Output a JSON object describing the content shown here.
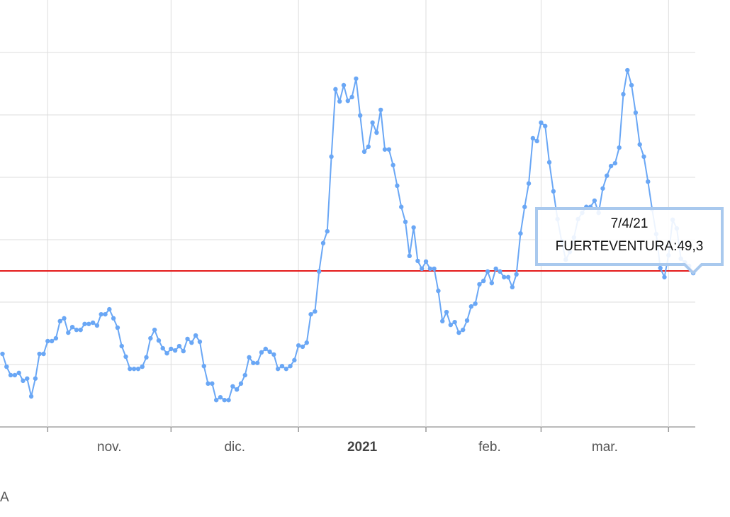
{
  "chart_data": {
    "type": "line",
    "series": [
      {
        "name": "FUERTEVENTURA",
        "color": "#6aa7f5",
        "values": [
          23.4,
          19.3,
          16.6,
          16.6,
          17.3,
          14.8,
          15.5,
          9.8,
          15.5,
          23.4,
          23.4,
          27.5,
          27.5,
          28.4,
          33.9,
          34.8,
          30.2,
          32.0,
          31.1,
          31.1,
          33.0,
          33.0,
          33.4,
          32.5,
          36.1,
          36.1,
          37.7,
          34.8,
          31.8,
          25.9,
          22.5,
          18.6,
          18.6,
          18.6,
          19.3,
          22.3,
          28.4,
          31.1,
          27.7,
          25.2,
          23.6,
          25.0,
          24.5,
          25.9,
          24.3,
          28.2,
          27.0,
          29.3,
          27.3,
          19.5,
          13.9,
          13.9,
          8.6,
          9.5,
          8.6,
          8.6,
          13.0,
          12.0,
          13.9,
          16.6,
          22.3,
          20.5,
          20.5,
          23.9,
          25.0,
          24.1,
          23.2,
          18.6,
          19.5,
          18.6,
          19.5,
          21.4,
          26.1,
          25.7,
          27.0,
          36.1,
          37.0,
          49.8,
          58.9,
          62.7,
          86.6,
          108.2,
          104.3,
          109.5,
          104.5,
          105.7,
          111.6,
          99.8,
          88.2,
          89.8,
          97.5,
          94.3,
          101.6,
          88.9,
          88.9,
          83.9,
          77.3,
          70.5,
          65.7,
          54.8,
          63.9,
          53.2,
          50.7,
          53.0,
          50.7,
          50.7,
          43.6,
          33.9,
          36.8,
          32.7,
          33.6,
          30.2,
          31.1,
          34.1,
          38.6,
          39.5,
          45.7,
          46.8,
          49.8,
          46.1,
          50.7,
          49.8,
          48.0,
          48.0,
          44.8,
          48.9,
          62.0,
          70.5,
          78.0,
          92.5,
          91.6,
          97.5,
          96.4,
          84.8,
          75.5,
          66.6,
          59.5,
          53.6,
          56.1,
          60.7,
          66.6,
          68.6,
          70.5,
          70.5,
          72.5,
          68.6,
          76.4,
          80.5,
          83.6,
          84.5,
          89.5,
          106.6,
          114.3,
          109.5,
          100.7,
          90.5,
          86.6,
          78.6,
          69.8,
          61.8,
          50.9,
          48.0,
          55.0,
          66.4,
          63.6,
          53.9,
          52.7,
          51.6,
          49.3
        ]
      }
    ],
    "xlim": [
      -0.6,
      168.5
    ],
    "xticks": [
      11,
      41,
      72,
      103,
      131,
      162
    ],
    "xlabels": [
      {
        "value": 26,
        "label": "nov."
      },
      {
        "value": 56.5,
        "label": "dic."
      },
      {
        "value": 87.5,
        "label": "2021"
      },
      {
        "value": 118.5,
        "label": "feb."
      },
      {
        "value": 146.5,
        "label": "mar."
      }
    ],
    "ylim": [
      0,
      136.8
    ],
    "yticks": [
      0,
      20,
      40,
      60,
      80,
      100,
      120
    ],
    "grid": true,
    "reference_line": {
      "value": 50,
      "color": "#e41a1a"
    },
    "tooltip": {
      "title": "7/4/21",
      "text": "FUERTEVENTURA:49,3"
    },
    "legend_fragment": "A"
  }
}
